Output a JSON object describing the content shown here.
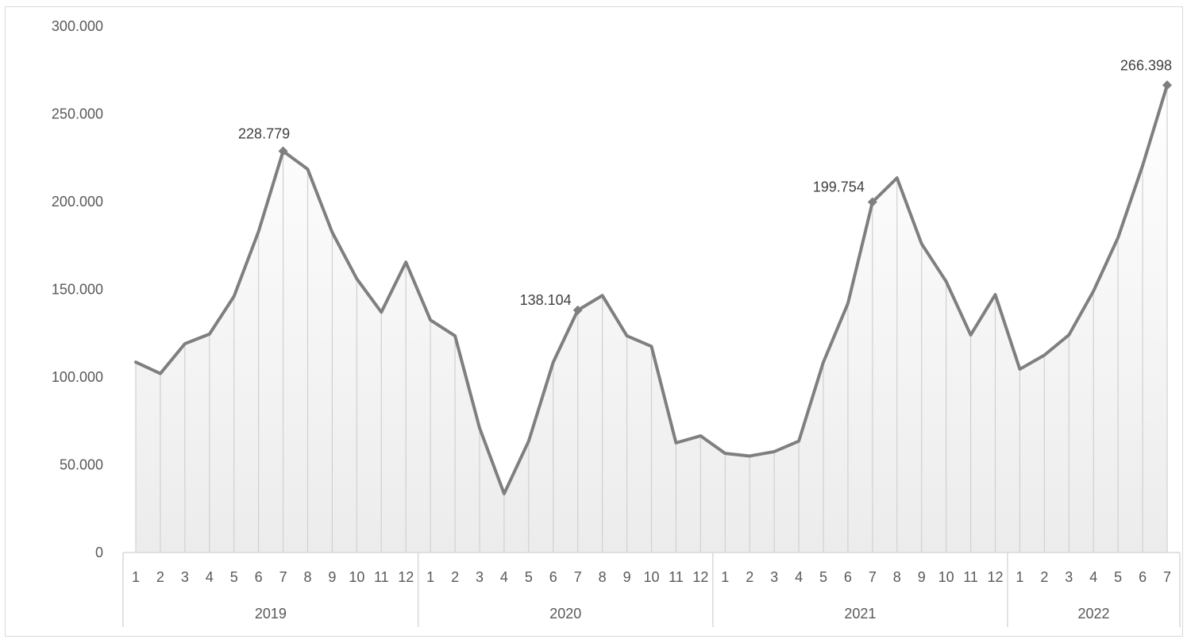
{
  "chart_data": {
    "type": "line",
    "title": "",
    "xlabel": "",
    "ylabel": "",
    "ylim": [
      0,
      300000
    ],
    "y_ticks": [
      0,
      50000,
      100000,
      150000,
      200000,
      250000,
      300000
    ],
    "y_tick_labels": [
      "0",
      "50.000",
      "100.000",
      "150.000",
      "200.000",
      "250.000",
      "300.000"
    ],
    "year_groups": [
      {
        "year": "2019",
        "months": [
          "1",
          "2",
          "3",
          "4",
          "5",
          "6",
          "7",
          "8",
          "9",
          "10",
          "11",
          "12"
        ]
      },
      {
        "year": "2020",
        "months": [
          "1",
          "2",
          "3",
          "4",
          "5",
          "6",
          "7",
          "8",
          "9",
          "10",
          "11",
          "12"
        ]
      },
      {
        "year": "2021",
        "months": [
          "1",
          "2",
          "3",
          "4",
          "5",
          "6",
          "7",
          "8",
          "9",
          "10",
          "11",
          "12"
        ]
      },
      {
        "year": "2022",
        "months": [
          "1",
          "2",
          "3",
          "4",
          "5",
          "6",
          "7"
        ]
      }
    ],
    "series": [
      {
        "values": [
          108500,
          102000,
          119000,
          124500,
          146000,
          183000,
          228779,
          218500,
          182500,
          156000,
          137000,
          165500,
          132500,
          123500,
          71000,
          33500,
          63500,
          108500,
          138104,
          146500,
          123500,
          117500,
          62500,
          66500,
          56500,
          55000,
          57500,
          63500,
          108500,
          142000,
          199754,
          213500,
          176000,
          154500,
          124000,
          147000,
          104500,
          112500,
          124000,
          149000,
          179500,
          220500,
          266398
        ],
        "color": "#7f7f7f"
      }
    ],
    "data_labels": [
      {
        "index": 6,
        "text": "228.779"
      },
      {
        "index": 18,
        "text": "138.104"
      },
      {
        "index": 30,
        "text": "199.754"
      },
      {
        "index": 42,
        "text": "266.398"
      }
    ],
    "grid": false,
    "drop_lines": true,
    "legend": "none"
  }
}
